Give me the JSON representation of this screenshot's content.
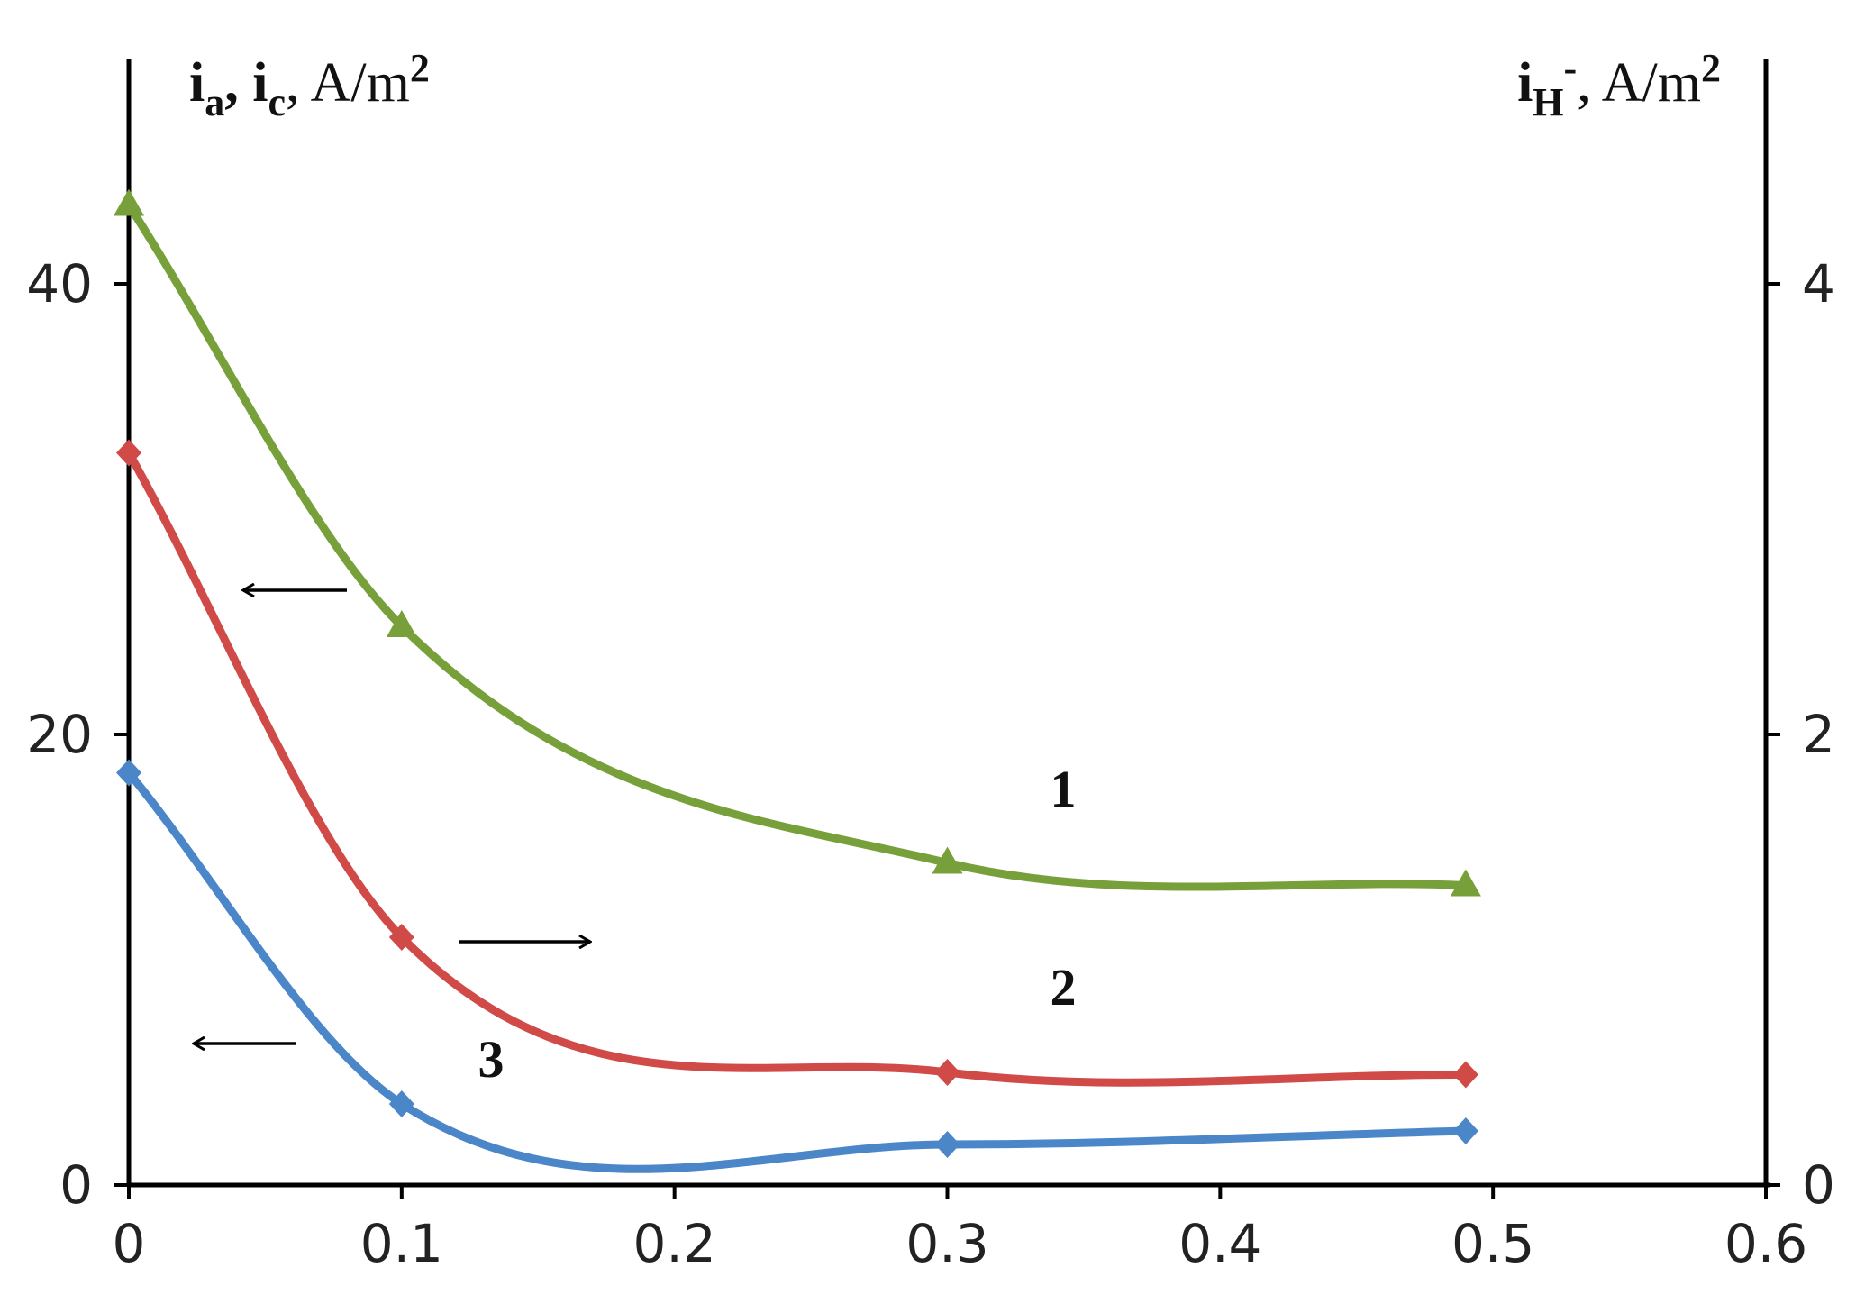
{
  "chart_data": {
    "type": "line",
    "x_ticks": [
      "0",
      "0.1",
      "0.2",
      "0.3",
      "0.4",
      "0.5",
      "0.6"
    ],
    "xlim": [
      0,
      0.6
    ],
    "y_left": {
      "title_parts": [
        {
          "text": "i",
          "style": "bold"
        },
        {
          "text": "a",
          "style": "sub"
        },
        {
          "text": ", ",
          "style": "bold"
        },
        {
          "text": "i",
          "style": "bold"
        },
        {
          "text": "c",
          "style": "sub"
        },
        {
          "text": ", A/m",
          "style": "unit"
        },
        {
          "text": "2",
          "style": "sup"
        }
      ],
      "ticks": [
        "0",
        "20",
        "40"
      ],
      "tick_values": [
        0,
        20,
        40
      ],
      "ylim": [
        0,
        50
      ]
    },
    "y_right": {
      "title_parts": [
        {
          "text": "i",
          "style": "bold"
        },
        {
          "text": "H",
          "style": "sub"
        },
        {
          "text": "-",
          "style": "sup"
        },
        {
          "text": ", A/m",
          "style": "unit"
        },
        {
          "text": "2",
          "style": "sup"
        }
      ],
      "ticks": [
        "0",
        "2",
        "4"
      ],
      "tick_values": [
        0,
        2,
        4
      ],
      "ylim": [
        0,
        5
      ]
    },
    "grid": false,
    "series": [
      {
        "label": "1",
        "axis": "left",
        "color": "#77a03a",
        "marker": "triangle",
        "x": [
          0,
          0.1,
          0.3,
          0.49
        ],
        "y": [
          43.5,
          24.8,
          14.3,
          13.3
        ]
      },
      {
        "label": "2",
        "axis": "right",
        "color": "#d04a48",
        "marker": "diamond",
        "x": [
          0,
          0.1,
          0.3,
          0.49
        ],
        "y": [
          3.25,
          1.1,
          0.5,
          0.49
        ]
      },
      {
        "label": "3",
        "axis": "left",
        "color": "#4a86c8",
        "marker": "diamond",
        "x": [
          0,
          0.1,
          0.3,
          0.49
        ],
        "y": [
          18.3,
          3.6,
          1.8,
          2.4
        ]
      }
    ],
    "annotations": [
      {
        "type": "arrow",
        "direction": "left",
        "points_to": "left-axis",
        "near_series": "1"
      },
      {
        "type": "arrow",
        "direction": "right",
        "points_to": "right-axis",
        "near_series": "2"
      },
      {
        "type": "arrow",
        "direction": "left",
        "points_to": "left-axis",
        "near_series": "3"
      }
    ]
  }
}
